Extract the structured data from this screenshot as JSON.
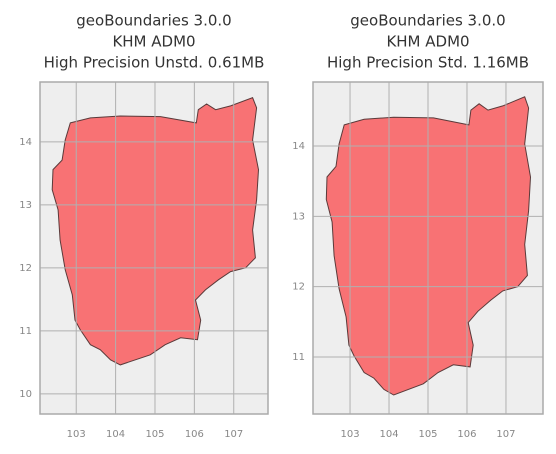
{
  "chart_data": [
    {
      "type": "map",
      "title": [
        "geoBoundaries 3.0.0",
        "KHM ADM0",
        "High Precision Unstd. 0.61MB"
      ],
      "xlim": [
        102.08,
        107.87
      ],
      "ylim": [
        9.68,
        14.95
      ],
      "xticks": [
        103,
        104,
        105,
        106,
        107
      ],
      "yticks": [
        10,
        11,
        12,
        13,
        14
      ],
      "color": "#f87274",
      "grid": true
    },
    {
      "type": "map",
      "title": [
        "geoBoundaries 3.0.0",
        "KHM ADM0",
        "High Precision Std. 1.16MB"
      ],
      "xlim": [
        102.05,
        107.95
      ],
      "ylim": [
        10.19,
        14.91
      ],
      "xticks": [
        103,
        104,
        105,
        106,
        107
      ],
      "yticks": [
        11,
        12,
        13,
        14
      ],
      "color": "#f87274",
      "grid": true
    }
  ]
}
